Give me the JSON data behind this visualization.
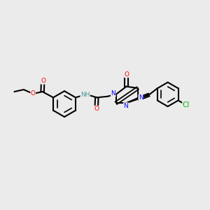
{
  "background_color": "#ebebeb",
  "bond_color": "#000000",
  "bond_width": 1.5,
  "atom_colors": {
    "O": "#ff0000",
    "N": "#0000ff",
    "Cl": "#00bb00",
    "H": "#4a9a9a",
    "C": "#000000"
  },
  "font_size": 6.5,
  "figsize": [
    3.0,
    3.0
  ],
  "dpi": 100,
  "xlim": [
    0,
    10
  ],
  "ylim": [
    0,
    10
  ]
}
